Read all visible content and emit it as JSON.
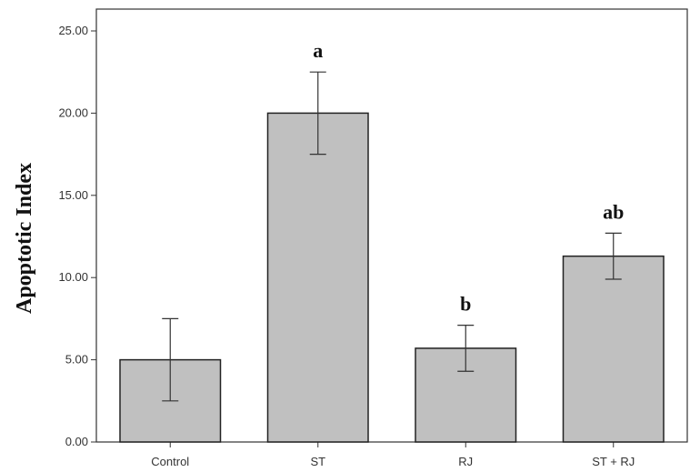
{
  "chart_data": {
    "type": "bar",
    "ylabel": "Apoptotic Index",
    "ylim": [
      0,
      25
    ],
    "yticks": [
      0,
      5,
      10,
      15,
      20,
      25
    ],
    "ytick_labels": [
      "0.00",
      "5.00",
      "10.00",
      "15.00",
      "20.00",
      "25.00"
    ],
    "categories": [
      "Control",
      "ST",
      "RJ",
      "ST + RJ"
    ],
    "values": [
      5.0,
      20.0,
      5.7,
      11.3
    ],
    "error_low": [
      2.5,
      17.5,
      4.3,
      9.9
    ],
    "error_high": [
      7.5,
      22.5,
      7.1,
      12.7
    ],
    "significance_labels": [
      "",
      "a",
      "b",
      "ab"
    ],
    "bar_color": "#c0c0c0",
    "bar_edge_color": "#222222",
    "error_bar_color": "#333333",
    "grid": false,
    "legend": "none"
  }
}
